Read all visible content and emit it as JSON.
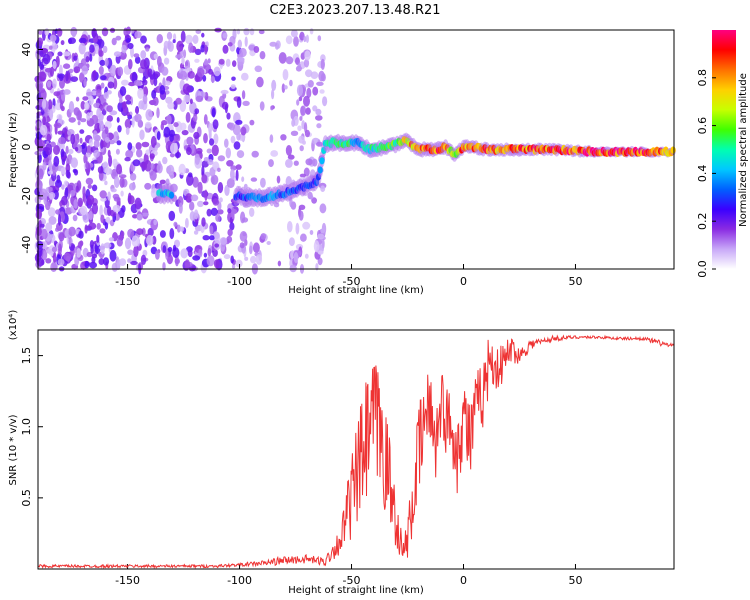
{
  "figure_title": "C2E3.2023.207.13.48.R21",
  "chart_data": [
    {
      "type": "heatmap",
      "name": "spectrogram",
      "title": "C2E3.2023.207.13.48.R21",
      "xlabel": "Height of straight line (km)",
      "ylabel": "Frequency (Hz)",
      "xlim": [
        -190,
        94
      ],
      "ylim": [
        -50,
        48
      ],
      "xticks": [
        -150,
        -100,
        -50,
        0,
        50
      ],
      "yticks": [
        -40,
        -20,
        0,
        20,
        40
      ],
      "colorbar": {
        "label": "Normalized spectral amplitude",
        "range": [
          0,
          1
        ],
        "ticks": [
          0.0,
          0.2,
          0.4,
          0.6,
          0.8
        ],
        "colors": [
          "#ffffff",
          "#c8a8f8",
          "#8a2be2",
          "#3a00ff",
          "#0060ff",
          "#00c8ff",
          "#00ffb0",
          "#40ff00",
          "#c8ff00",
          "#ffd000",
          "#ff7000",
          "#ff0000",
          "#ff0080"
        ]
      },
      "ridge": {
        "x": [
          -135,
          -100,
          -90,
          -80,
          -70,
          -65,
          -62,
          -58,
          -52,
          -48,
          -42,
          -35,
          -30,
          -26,
          -22,
          -18,
          -12,
          -8,
          -4,
          0,
          5,
          10,
          20,
          40,
          60,
          80,
          94
        ],
        "y": [
          -19,
          -20,
          -21,
          -19,
          -16,
          -14,
          1,
          2,
          1,
          2,
          -1,
          0,
          1,
          3,
          0,
          -1,
          -1,
          0,
          -3,
          0,
          0,
          -1,
          -1,
          -1,
          -2,
          -2,
          -2
        ],
        "amplitude": [
          0.45,
          0.3,
          0.4,
          0.35,
          0.3,
          0.3,
          0.5,
          0.55,
          0.55,
          0.4,
          0.5,
          0.55,
          0.6,
          0.75,
          0.8,
          0.85,
          0.9,
          0.85,
          0.6,
          0.9,
          0.85,
          0.9,
          0.85,
          0.9,
          0.95,
          0.9,
          0.85
        ]
      },
      "noise_region_x": [
        -190,
        -62
      ]
    },
    {
      "type": "line",
      "name": "snr",
      "xlabel": "Height of straight line (km)",
      "ylabel": "SNR (10 * v/v)",
      "yunit": "(x10⁴)",
      "xlim": [
        -190,
        94
      ],
      "ylim": [
        0,
        1.68
      ],
      "xticks": [
        -150,
        -100,
        -50,
        0,
        50
      ],
      "yticks": [
        0.5,
        1.0,
        1.5
      ],
      "color": "#ee3333",
      "series": [
        {
          "name": "SNR",
          "x": [
            -190,
            -150,
            -110,
            -100,
            -90,
            -80,
            -70,
            -62,
            -55,
            -50,
            -45,
            -40,
            -37,
            -33,
            -30,
            -27,
            -24,
            -21,
            -18,
            -15,
            -12,
            -10,
            -8,
            -5,
            -3,
            0,
            3,
            6,
            9,
            12,
            15,
            18,
            21,
            25,
            30,
            35,
            40,
            50,
            60,
            70,
            80,
            85,
            90,
            94
          ],
          "y": [
            0.02,
            0.02,
            0.02,
            0.03,
            0.04,
            0.06,
            0.07,
            0.05,
            0.2,
            0.5,
            0.8,
            1.05,
            0.95,
            0.6,
            0.35,
            0.1,
            0.3,
            0.7,
            1.0,
            1.15,
            0.9,
            1.2,
            1.05,
            1.0,
            0.8,
            1.1,
            0.9,
            1.15,
            1.25,
            1.5,
            1.4,
            1.45,
            1.55,
            1.5,
            1.58,
            1.6,
            1.62,
            1.63,
            1.63,
            1.62,
            1.62,
            1.6,
            1.58,
            1.56
          ],
          "spread": [
            0.01,
            0.01,
            0.01,
            0.01,
            0.02,
            0.03,
            0.03,
            0.03,
            0.1,
            0.3,
            0.45,
            0.45,
            0.45,
            0.35,
            0.2,
            0.08,
            0.2,
            0.35,
            0.3,
            0.3,
            0.3,
            0.25,
            0.25,
            0.25,
            0.3,
            0.3,
            0.3,
            0.25,
            0.25,
            0.2,
            0.15,
            0.15,
            0.1,
            0.06,
            0.04,
            0.02,
            0.02,
            0.01,
            0.01,
            0.01,
            0.01,
            0.02,
            0.02,
            0.02
          ]
        }
      ]
    }
  ]
}
